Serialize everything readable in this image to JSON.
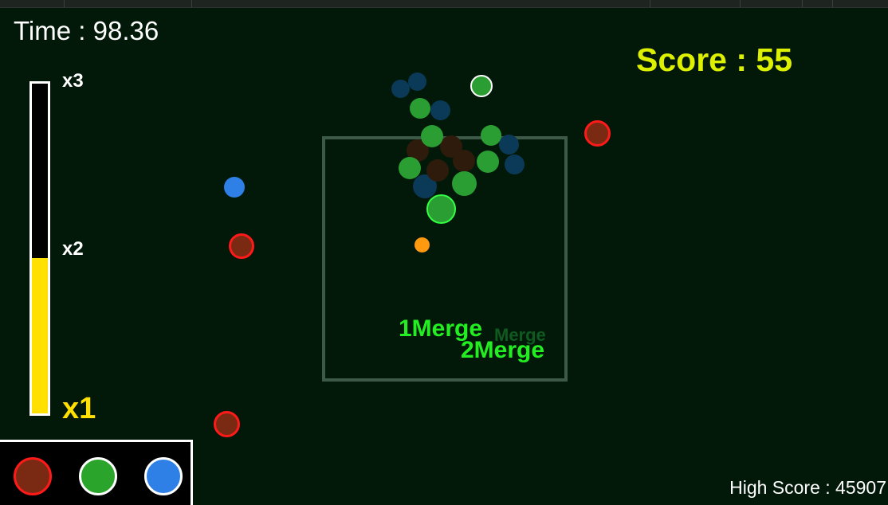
{
  "hud": {
    "time": "Time : 98.36",
    "score": "Score : 55",
    "high_score": "High Score : 45907"
  },
  "multiplier": {
    "x3_label": "x3",
    "x2_label": "x2",
    "x1_label": "x1",
    "fill_fraction": 0.47
  },
  "merge_texts": {
    "first": "1Merge",
    "second": "2Merge",
    "ghost": "Merge"
  },
  "palette": {
    "colors": [
      "#7a2a12",
      "#2aa42a",
      "#2e7fe6"
    ],
    "borders": [
      "#ff1a1a",
      "#ffffff",
      "#ffffff"
    ]
  },
  "colors": {
    "background": "#02190a",
    "score": "#ddf000",
    "gauge_fill": "#ffe000",
    "merge_text": "#22ee22"
  }
}
